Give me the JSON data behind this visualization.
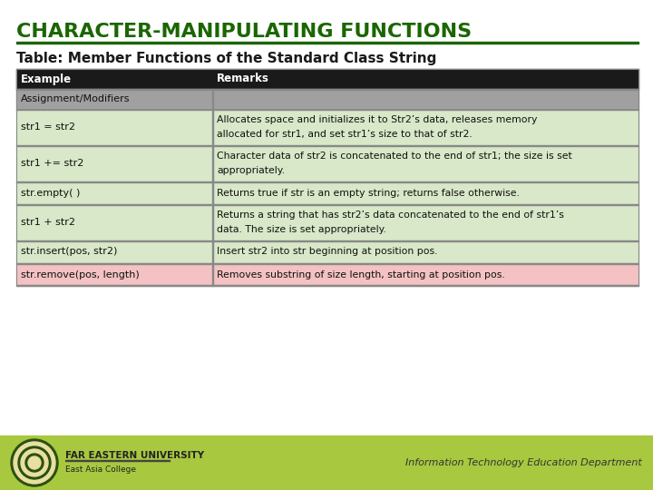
{
  "title": "CHARACTER-MANIPULATING FUNCTIONS",
  "subtitle": "Table: Member Functions of the Standard Class String",
  "title_color": "#1a6600",
  "subtitle_color": "#1a1a1a",
  "header_bg": "#1a1a1a",
  "header_text_color": "#ffffff",
  "section_bg": "#a0a0a0",
  "row_bg_light": "#d8e8c8",
  "row_bg_pink": "#f4c2c2",
  "border_color": "#888888",
  "bg_color": "#ffffff",
  "footer_bg": "#a8c840",
  "footer_text": "Information Technology Education Department",
  "footer_uni": "FAR EASTERN UNIVERSITY",
  "footer_college": "East Asia College",
  "columns": [
    "Example",
    "Remarks"
  ],
  "col_split": 0.315,
  "table_rows": [
    {
      "ex": "Assignment/Modifiers",
      "rem": "",
      "bg": "section",
      "lines": 1
    },
    {
      "ex": "str1 = str2",
      "rem": "Allocates space and initializes it to Str2’s data, releases memory\nallocated for str1, and set str1’s size to that of str2.",
      "bg": "light",
      "lines": 2
    },
    {
      "ex": "str1 += str2",
      "rem": "Character data of str2 is concatenated to the end of str1; the size is set\nappropriately.",
      "bg": "light",
      "lines": 2
    },
    {
      "ex": "str.empty( )",
      "rem": "Returns true if str is an empty string; returns false otherwise.",
      "bg": "light",
      "lines": 1
    },
    {
      "ex": "str1 + str2",
      "rem": "Returns a string that has str2’s data concatenated to the end of str1’s\ndata. The size is set appropriately.",
      "bg": "light",
      "lines": 2
    },
    {
      "ex": "str.insert(pos, str2)",
      "rem": "Insert str2 into str beginning at position pos.",
      "bg": "light",
      "lines": 1
    },
    {
      "ex": "str.remove(pos, length)",
      "rem": "Removes substring of size length, starting at position pos.",
      "bg": "pink",
      "lines": 1
    }
  ]
}
